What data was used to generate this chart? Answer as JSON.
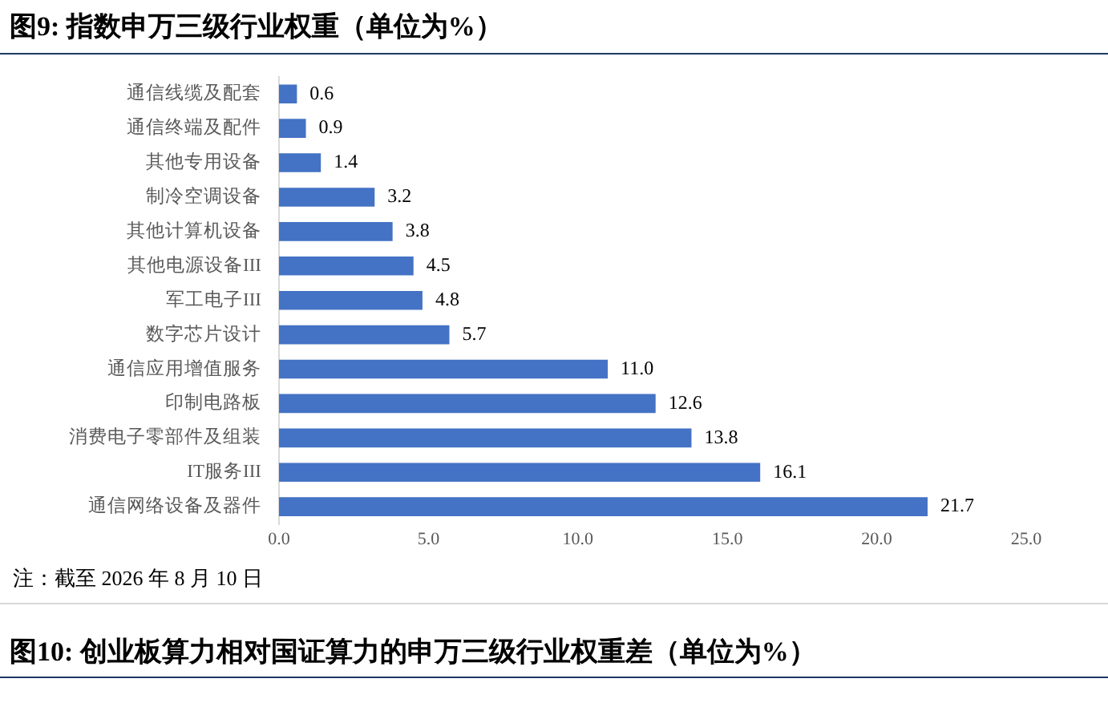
{
  "chart_data": {
    "type": "bar",
    "title": "图9:  指数申万三级行业权重（单位为%）",
    "orientation": "horizontal",
    "categories": [
      "通信线缆及配套",
      "通信终端及配件",
      "其他专用设备",
      "制冷空调设备",
      "其他计算机设备",
      "其他电源设备III",
      "军工电子III",
      "数字芯片设计",
      "通信应用增值服务",
      "印制电路板",
      "消费电子零部件及组装",
      "IT服务III",
      "通信网络设备及器件"
    ],
    "values": [
      0.6,
      0.9,
      1.4,
      3.2,
      3.8,
      4.5,
      4.8,
      5.7,
      11.0,
      12.6,
      13.8,
      16.1,
      21.7
    ],
    "value_labels": [
      "0.6",
      "0.9",
      "1.4",
      "3.2",
      "3.8",
      "4.5",
      "4.8",
      "5.7",
      "11.0",
      "12.6",
      "13.8",
      "16.1",
      "21.7"
    ],
    "color": "#4472c4",
    "xlim": [
      0,
      25
    ],
    "xticks": [
      {
        "value": 0,
        "label": "0.0"
      },
      {
        "value": 5,
        "label": "5.0"
      },
      {
        "value": 10,
        "label": "10.0"
      },
      {
        "value": 15,
        "label": "15.0"
      },
      {
        "value": 20,
        "label": "20.0"
      },
      {
        "value": 25,
        "label": "25.0"
      }
    ],
    "grid": false,
    "legend": false,
    "annotations": [
      "注：截至 2026 年 8 月 10 日",
      "图10:  创业板算力相对国证算力的申万三级行业权重差（单位为%）"
    ]
  }
}
